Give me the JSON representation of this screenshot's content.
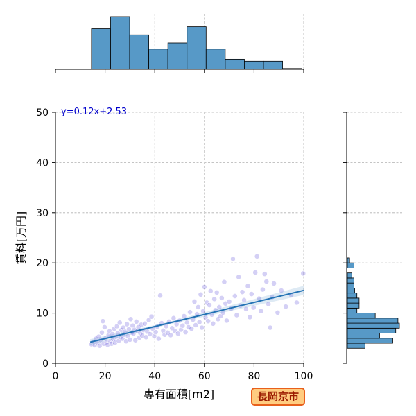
{
  "city_label": "長岡京市",
  "chart_data": {
    "type": "scatter",
    "xlabel": "専有面積[m2]",
    "ylabel": "賃料[万円]",
    "xlim": [
      0,
      100
    ],
    "ylim": [
      0,
      50
    ],
    "x_ticks": [
      0,
      20,
      40,
      60,
      80,
      100
    ],
    "y_ticks": [
      0,
      10,
      20,
      30,
      40,
      50
    ],
    "grid": true,
    "regression": {
      "equation": "y=0.12x+2.53",
      "slope": 0.12,
      "intercept": 2.53,
      "x_range": [
        14,
        100
      ]
    },
    "point_color": "#3d2ad0",
    "line_color": "#2272b4",
    "bar_color": "#5799c7",
    "points": [
      [
        14.5,
        3.8
      ],
      [
        15.2,
        4.3
      ],
      [
        15.8,
        3.6
      ],
      [
        16.3,
        4.9
      ],
      [
        16.9,
        4.1
      ],
      [
        17.4,
        5.3
      ],
      [
        17.8,
        3.5
      ],
      [
        18.3,
        4.6
      ],
      [
        18.7,
        6.1
      ],
      [
        19.1,
        8.4
      ],
      [
        19.4,
        3.9
      ],
      [
        19.8,
        7.2
      ],
      [
        20.2,
        5.0
      ],
      [
        20.6,
        4.2
      ],
      [
        21.0,
        3.7
      ],
      [
        21.4,
        5.6
      ],
      [
        21.8,
        6.4
      ],
      [
        22.2,
        4.4
      ],
      [
        22.6,
        3.9
      ],
      [
        23.0,
        5.8
      ],
      [
        23.3,
        4.8
      ],
      [
        23.7,
        6.9
      ],
      [
        24.0,
        4.1
      ],
      [
        24.4,
        5.3
      ],
      [
        24.8,
        7.4
      ],
      [
        25.1,
        6.0
      ],
      [
        25.5,
        4.5
      ],
      [
        25.9,
        8.1
      ],
      [
        26.2,
        5.2
      ],
      [
        26.6,
        6.6
      ],
      [
        27.0,
        4.9
      ],
      [
        27.3,
        7.1
      ],
      [
        27.7,
        5.7
      ],
      [
        28.1,
        6.3
      ],
      [
        28.5,
        4.4
      ],
      [
        28.8,
        7.8
      ],
      [
        29.2,
        5.4
      ],
      [
        29.6,
        6.8
      ],
      [
        30.0,
        4.7
      ],
      [
        30.3,
        8.8
      ],
      [
        30.7,
        6.1
      ],
      [
        31.1,
        7.5
      ],
      [
        31.4,
        5.9
      ],
      [
        31.8,
        6.7
      ],
      [
        32.2,
        4.6
      ],
      [
        32.6,
        8.3
      ],
      [
        33.0,
        6.4
      ],
      [
        33.4,
        7.2
      ],
      [
        33.8,
        5.1
      ],
      [
        34.2,
        6.0
      ],
      [
        34.6,
        7.7
      ],
      [
        35.0,
        5.5
      ],
      [
        35.5,
        6.6
      ],
      [
        36.0,
        7.9
      ],
      [
        36.5,
        5.2
      ],
      [
        37.0,
        6.3
      ],
      [
        37.6,
        8.6
      ],
      [
        38.1,
        5.8
      ],
      [
        38.7,
        9.3
      ],
      [
        39.2,
        6.9
      ],
      [
        39.8,
        5.4
      ],
      [
        40.4,
        6.2
      ],
      [
        41.0,
        7.3
      ],
      [
        41.6,
        4.9
      ],
      [
        42.2,
        13.5
      ],
      [
        42.8,
        8.0
      ],
      [
        43.4,
        6.5
      ],
      [
        44.0,
        5.7
      ],
      [
        44.6,
        7.4
      ],
      [
        45.2,
        6.1
      ],
      [
        45.8,
        8.3
      ],
      [
        46.4,
        5.6
      ],
      [
        47.0,
        7.0
      ],
      [
        47.6,
        9.0
      ],
      [
        48.2,
        6.4
      ],
      [
        48.8,
        7.8
      ],
      [
        49.4,
        5.9
      ],
      [
        50.0,
        8.5
      ],
      [
        50.6,
        6.7
      ],
      [
        51.2,
        7.5
      ],
      [
        51.8,
        9.4
      ],
      [
        52.4,
        6.2
      ],
      [
        53.0,
        8.1
      ],
      [
        53.6,
        7.2
      ],
      [
        54.2,
        10.2
      ],
      [
        54.8,
        6.9
      ],
      [
        55.4,
        8.7
      ],
      [
        56.0,
        12.3
      ],
      [
        56.5,
        7.6
      ],
      [
        57.0,
        9.8
      ],
      [
        57.5,
        11.2
      ],
      [
        58.0,
        8.2
      ],
      [
        58.5,
        13.7
      ],
      [
        59.0,
        7.1
      ],
      [
        59.5,
        10.4
      ],
      [
        60.0,
        15.2
      ],
      [
        60.5,
        9.1
      ],
      [
        61.0,
        12.1
      ],
      [
        61.5,
        8.4
      ],
      [
        62.0,
        11.6
      ],
      [
        62.5,
        14.4
      ],
      [
        63.0,
        9.7
      ],
      [
        63.5,
        7.9
      ],
      [
        64.0,
        12.8
      ],
      [
        64.5,
        10.6
      ],
      [
        65.0,
        14.1
      ],
      [
        65.5,
        8.8
      ],
      [
        66.0,
        11.2
      ],
      [
        66.5,
        9.4
      ],
      [
        67.0,
        13.0
      ],
      [
        67.5,
        10.1
      ],
      [
        68.0,
        16.2
      ],
      [
        68.5,
        11.9
      ],
      [
        69.0,
        8.5
      ],
      [
        70.0,
        12.3
      ],
      [
        70.8,
        10.9
      ],
      [
        71.5,
        20.8
      ],
      [
        72.3,
        13.4
      ],
      [
        73.0,
        9.6
      ],
      [
        73.8,
        17.2
      ],
      [
        74.5,
        11.5
      ],
      [
        75.3,
        14.2
      ],
      [
        76.0,
        12.6
      ],
      [
        76.8,
        10.8
      ],
      [
        77.5,
        15.4
      ],
      [
        78.3,
        9.2
      ],
      [
        79.0,
        13.8
      ],
      [
        79.8,
        11.1
      ],
      [
        80.5,
        18.1
      ],
      [
        81.2,
        21.3
      ],
      [
        82.0,
        12.9
      ],
      [
        82.8,
        10.4
      ],
      [
        83.5,
        14.7
      ],
      [
        84.3,
        17.8
      ],
      [
        85.0,
        16.3
      ],
      [
        85.8,
        11.8
      ],
      [
        86.5,
        7.1
      ],
      [
        87.3,
        13.2
      ],
      [
        88.0,
        15.9
      ],
      [
        89.5,
        10.1
      ],
      [
        91.0,
        14.5
      ],
      [
        92.8,
        11.3
      ],
      [
        95.0,
        13.6
      ],
      [
        97.2,
        12.1
      ],
      [
        99.8,
        17.9
      ]
    ],
    "hist_x": {
      "bin_edges": [
        0,
        7.25,
        14.5,
        22.2,
        29.9,
        37.6,
        45.3,
        53.0,
        60.7,
        68.4,
        76.1,
        83.8,
        91.5,
        99.2
      ],
      "counts": [
        0,
        0,
        20,
        26,
        17,
        10,
        13,
        21,
        10,
        5,
        4,
        4,
        0.4
      ]
    },
    "hist_y": {
      "bin_edges": [
        3,
        4,
        5,
        6,
        7,
        8,
        9,
        10,
        11,
        12,
        13,
        14,
        15,
        16,
        17,
        18,
        19,
        20,
        21
      ],
      "counts": [
        24,
        62,
        44,
        66,
        71,
        69,
        38,
        13,
        16,
        16,
        13,
        10,
        9,
        9,
        6,
        0,
        9,
        3
      ]
    }
  }
}
